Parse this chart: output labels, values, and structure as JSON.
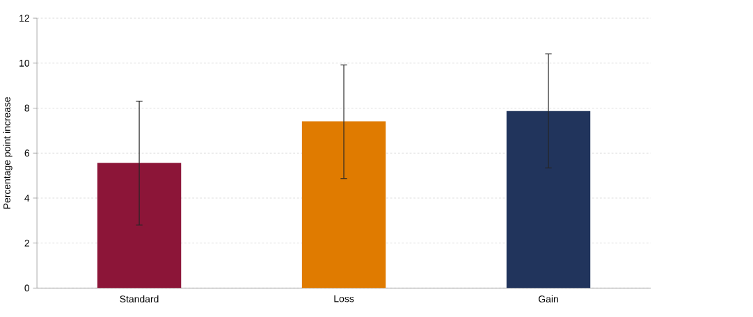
{
  "chart_data": {
    "type": "bar",
    "ylabel": "Percentage point increase",
    "categories": [
      "Standard",
      "Loss",
      "Gain"
    ],
    "values": [
      5.57,
      7.41,
      7.87
    ],
    "colors": [
      "#8c1538",
      "#e07b00",
      "#21345c"
    ],
    "errors": [
      [
        2.8,
        8.31
      ],
      [
        4.87,
        9.92
      ],
      [
        5.34,
        10.41
      ]
    ],
    "ylim": [
      0,
      12
    ],
    "yticks": [
      0,
      2,
      4,
      6,
      8,
      10,
      12
    ],
    "grid": "y"
  }
}
